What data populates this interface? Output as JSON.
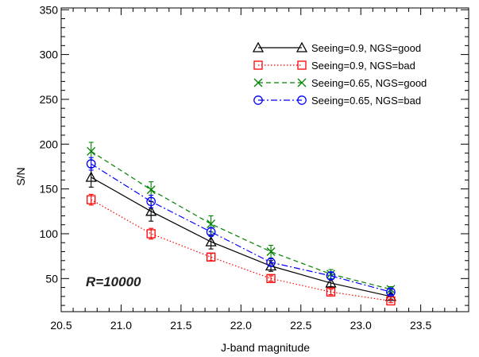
{
  "chart_data": {
    "type": "line",
    "title": "",
    "xlabel": "J-band magnitude",
    "ylabel": "S/N",
    "xlim": [
      20.5,
      23.9
    ],
    "ylim": [
      13,
      352
    ],
    "xticks": [
      20.5,
      21.0,
      21.5,
      22.0,
      22.5,
      23.0,
      23.5
    ],
    "xtick_labels": [
      "20.5",
      "21.0",
      "21.5",
      "22.0",
      "22.5",
      "23.0",
      "23.5"
    ],
    "yticks": [
      50,
      100,
      150,
      200,
      250,
      300,
      350
    ],
    "ytick_labels": [
      "50",
      "100",
      "150",
      "200",
      "250",
      "300",
      "350"
    ],
    "grid": false,
    "legend_position": "top-right",
    "annotation": "R=10000",
    "x": [
      20.75,
      21.25,
      21.75,
      22.25,
      22.75,
      23.25
    ],
    "series": [
      {
        "name": "Seeing=0.9, NGS=good",
        "color": "#000000",
        "linestyle": "solid",
        "marker": "triangle",
        "values": [
          163,
          125,
          91,
          64,
          45,
          30
        ],
        "errors": [
          11,
          11,
          8,
          6,
          4,
          3
        ]
      },
      {
        "name": "Seeing=0.9, NGS=bad",
        "color": "#ff0000",
        "linestyle": "dotted",
        "marker": "square",
        "values": [
          138,
          100,
          74,
          50,
          35,
          25
        ],
        "errors": [
          6,
          6,
          4,
          3,
          3,
          2
        ]
      },
      {
        "name": "Seeing=0.65, NGS=good",
        "color": "#008000",
        "linestyle": "dashed",
        "marker": "x",
        "values": [
          192,
          149,
          111,
          80,
          55,
          38
        ],
        "errors": [
          10,
          9,
          9,
          7,
          5,
          3
        ]
      },
      {
        "name": "Seeing=0.65, NGS=bad",
        "color": "#0000ff",
        "linestyle": "dashdot",
        "marker": "circle",
        "values": [
          178,
          136,
          102,
          68,
          53,
          35
        ],
        "errors": [
          7,
          7,
          5,
          4,
          4,
          3
        ]
      }
    ]
  }
}
